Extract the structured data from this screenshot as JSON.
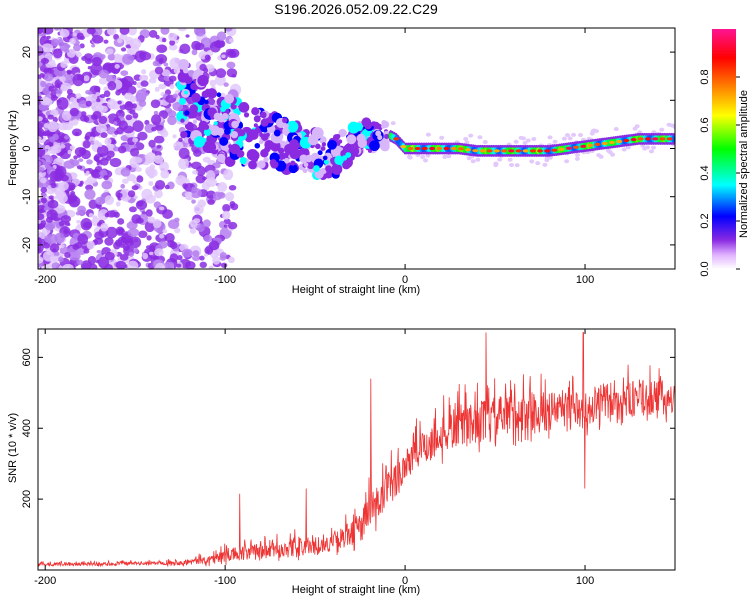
{
  "figure": {
    "title": "S196.2026.052.09.22.C29"
  },
  "chart_data": [
    {
      "type": "heatmap",
      "name": "spectrogram",
      "title": "S196.2026.052.09.22.C29",
      "xlabel": "Height of straight line (km)",
      "ylabel": "Frequency (Hz)",
      "xlim": [
        -204,
        150
      ],
      "ylim": [
        -25,
        25
      ],
      "xticks": [
        -200,
        -100,
        0,
        100
      ],
      "xtick_labels": [
        "-200",
        "-100",
        "0",
        "100"
      ],
      "yticks": [
        20,
        10,
        0,
        -10,
        -20
      ],
      "ytick_labels": [
        "20",
        "10",
        "0",
        "-10",
        "-20"
      ],
      "colormap": [
        "#ffffff",
        "#8a2be2",
        "#0000ff",
        "#00ffff",
        "#00ff00",
        "#ffff00",
        "#ff8000",
        "#ff0000",
        "#ff1493"
      ],
      "background": "#ffffff",
      "ridge": {
        "x": [
          -125,
          -110,
          -100,
          -90,
          -80,
          -70,
          -60,
          -50,
          -40,
          -30,
          -20,
          -10,
          -5,
          0,
          10,
          20,
          30,
          40,
          50,
          60,
          70,
          80,
          90,
          100,
          110,
          120,
          130,
          140,
          150
        ],
        "freq": [
          10,
          7,
          4,
          3,
          2,
          1.5,
          0,
          -1,
          -2,
          1,
          2.5,
          3,
          2,
          0,
          0,
          0,
          0,
          -0.5,
          -0.5,
          -0.5,
          -0.5,
          -0.5,
          0,
          0.5,
          1,
          1.5,
          2,
          2,
          2
        ]
      },
      "colorbar": {
        "label": "Normalized spectral amplitude",
        "range": [
          0,
          1
        ],
        "ticks": [
          0.0,
          0.2,
          0.4,
          0.6,
          0.8
        ],
        "tick_labels": [
          "0.0",
          "0.2",
          "0.4",
          "0.6",
          "0.8"
        ]
      }
    },
    {
      "type": "line",
      "name": "snr",
      "xlabel": "Height of straight line (km)",
      "ylabel": "SNR (10 * v/v)",
      "xlim": [
        -204,
        150
      ],
      "ylim": [
        0,
        680
      ],
      "xticks": [
        -200,
        -100,
        0,
        100
      ],
      "xtick_labels": [
        "-200",
        "-100",
        "0",
        "100"
      ],
      "yticks": [
        200,
        400,
        600
      ],
      "ytick_labels": [
        "200",
        "400",
        "600"
      ],
      "line_color": "#ee3333",
      "envelope": {
        "x": [
          -204,
          -180,
          -160,
          -140,
          -120,
          -110,
          -100,
          -90,
          -80,
          -70,
          -60,
          -50,
          -40,
          -30,
          -25,
          -20,
          -15,
          -10,
          -5,
          0,
          10,
          20,
          30,
          40,
          50,
          60,
          70,
          80,
          90,
          95,
          100,
          105,
          110,
          120,
          130,
          140,
          150
        ],
        "base": [
          15,
          15,
          16,
          18,
          20,
          25,
          35,
          40,
          45,
          50,
          55,
          60,
          70,
          90,
          110,
          140,
          170,
          200,
          240,
          280,
          330,
          360,
          390,
          400,
          410,
          420,
          425,
          430,
          440,
          440,
          420,
          450,
          460,
          460,
          470,
          470,
          470
        ],
        "amp": [
          12,
          12,
          12,
          12,
          20,
          30,
          45,
          60,
          55,
          60,
          70,
          40,
          60,
          90,
          110,
          150,
          150,
          140,
          130,
          130,
          130,
          140,
          150,
          150,
          150,
          150,
          150,
          140,
          130,
          120,
          100,
          130,
          130,
          130,
          130,
          120,
          100
        ]
      },
      "features": [
        {
          "x": -92,
          "y": 215
        },
        {
          "x": -55,
          "y": 230
        },
        {
          "x": -19,
          "y": 540
        },
        {
          "x": 45,
          "y": 670
        },
        {
          "x": 99,
          "y": 670
        },
        {
          "x": 100,
          "y": 230
        }
      ],
      "samples": 1400
    }
  ]
}
